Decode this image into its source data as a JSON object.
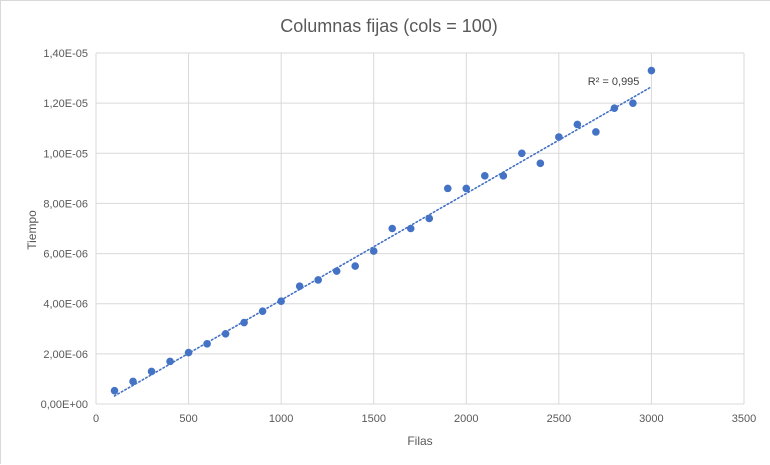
{
  "chart_data": {
    "type": "scatter",
    "title": "Columnas fijas (cols = 100)",
    "xlabel": "Filas",
    "ylabel": "Tiempo",
    "xlim": [
      0,
      3500
    ],
    "ylim": [
      0,
      1.4e-05
    ],
    "x_ticks": [
      0,
      500,
      1000,
      1500,
      2000,
      2500,
      3000,
      3500
    ],
    "x_tick_labels": [
      "0",
      "500",
      "1000",
      "1500",
      "2000",
      "2500",
      "3000",
      "3500"
    ],
    "y_ticks": [
      0,
      2e-06,
      4e-06,
      6e-06,
      8e-06,
      1e-05,
      1.2e-05,
      1.4e-05
    ],
    "y_tick_labels": [
      "0,00E+00",
      "2,00E-06",
      "4,00E-06",
      "6,00E-06",
      "8,00E-06",
      "1,00E-05",
      "1,20E-05",
      "1,40E-05"
    ],
    "grid": true,
    "series": [
      {
        "color": "#4472c4",
        "x": [
          100,
          200,
          300,
          400,
          500,
          600,
          700,
          800,
          900,
          1000,
          1100,
          1200,
          1300,
          1400,
          1500,
          1600,
          1700,
          1800,
          1900,
          2000,
          2100,
          2200,
          2300,
          2400,
          2500,
          2600,
          2700,
          2800,
          2900,
          3000
        ],
        "y": [
          5.3e-07,
          9e-07,
          1.3e-06,
          1.7e-06,
          2.05e-06,
          2.4e-06,
          2.8e-06,
          3.25e-06,
          3.7e-06,
          4.1e-06,
          4.7e-06,
          4.95e-06,
          5.3e-06,
          5.5e-06,
          6.1e-06,
          7e-06,
          7e-06,
          7.4e-06,
          8.6e-06,
          8.6e-06,
          9.1e-06,
          9.1e-06,
          1e-05,
          9.6e-06,
          1.065e-05,
          1.115e-05,
          1.085e-05,
          1.18e-05,
          1.2e-05,
          1.33e-05
        ]
      }
    ],
    "trendline": {
      "type": "linear",
      "style": "dotted",
      "color": "#4472c4",
      "x_range": [
        100,
        3000
      ],
      "y_range": [
        3.2e-07,
        1.265e-05
      ],
      "label": "R² = 0,995"
    }
  }
}
